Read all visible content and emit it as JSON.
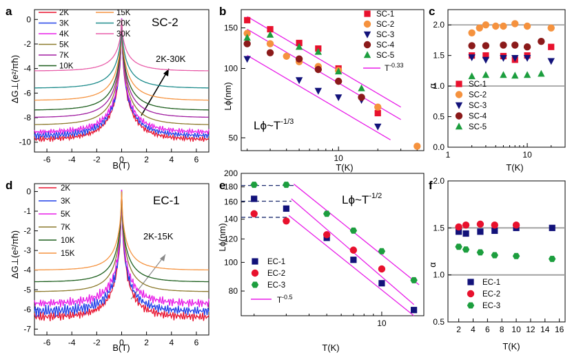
{
  "colors": {
    "red": "#e8112d",
    "orange": "#f5923e",
    "navy": "#12127a",
    "brown": "#8b1a1a",
    "green": "#1c9e3e",
    "magenta": "#e81ce8",
    "blue": "#1f3ee8",
    "olive": "#8c7a2c",
    "darkgreen": "#1c5e1c",
    "teal": "#1a8a8a",
    "black": "#000000",
    "pink": "#e85ca8",
    "purple": "#a01ca0",
    "gray": "#9a9a9a",
    "dash": "#1a2a6e"
  },
  "chart_data": [
    {
      "panel": "a",
      "type": "line",
      "label_text": "SC-2",
      "arrow_text": "2K-30K",
      "xlabel": "B(T)",
      "ylabel": "ΔG⊥(e²/πħ)",
      "xlim": [
        -7,
        7
      ],
      "ylim": [
        -10.8,
        0.8
      ],
      "xticks": [
        -6,
        -4,
        -2,
        0,
        2,
        4,
        6
      ],
      "yticks": [
        0,
        -2,
        -4,
        -6,
        -8,
        -10
      ],
      "series": [
        {
          "name": "2K",
          "color": "red",
          "edge": -9.8
        },
        {
          "name": "3K",
          "color": "blue",
          "edge": -9.5
        },
        {
          "name": "4K",
          "color": "magenta",
          "edge": -9.2
        },
        {
          "name": "5K",
          "color": "olive",
          "edge": -8.6
        },
        {
          "name": "7K",
          "color": "purple",
          "edge": -8.0
        },
        {
          "name": "10K",
          "color": "darkgreen",
          "edge": -7.4
        },
        {
          "name": "15K",
          "color": "orange",
          "edge": -6.6
        },
        {
          "name": "20K",
          "color": "teal",
          "edge": -5.6
        },
        {
          "name": "30K",
          "color": "pink",
          "edge": -4.2
        }
      ]
    },
    {
      "panel": "b",
      "type": "scatter",
      "scale": "log-log",
      "big_text": "Lϕ~T",
      "big_exp": "-1/3",
      "xlabel": "T(K)",
      "ylabel": "Lϕ(nm)",
      "xlim": [
        1.8,
        45
      ],
      "ylim": [
        44,
        180
      ],
      "xticks": [
        10
      ],
      "yticks": [
        50,
        100,
        150
      ],
      "series": [
        {
          "name": "SC-1",
          "marker": "square",
          "color": "red",
          "points": [
            [
              2,
              162
            ],
            [
              3,
              148
            ],
            [
              5,
              129
            ],
            [
              7,
              122
            ],
            [
              10,
              100
            ],
            [
              20,
              64
            ]
          ]
        },
        {
          "name": "SC-2",
          "marker": "circle",
          "color": "orange",
          "points": [
            [
              2,
              142
            ],
            [
              3,
              128
            ],
            [
              4,
              113
            ],
            [
              5,
              107
            ],
            [
              7,
              102
            ],
            [
              10,
              98
            ],
            [
              20,
              68
            ],
            [
              40,
              46
            ]
          ]
        },
        {
          "name": "SC-3",
          "marker": "triangle-down",
          "color": "navy",
          "points": [
            [
              2,
              110
            ],
            [
              5,
              89
            ],
            [
              7,
              80
            ],
            [
              10,
              75
            ],
            [
              15,
              73
            ],
            [
              20,
              56
            ]
          ]
        },
        {
          "name": "SC-4",
          "marker": "circle",
          "color": "brown",
          "points": [
            [
              2,
              128
            ],
            [
              3,
              117
            ],
            [
              5,
              110
            ],
            [
              7,
              99
            ],
            [
              10,
              88
            ],
            [
              15,
              75
            ]
          ]
        },
        {
          "name": "SC-5",
          "marker": "triangle-up",
          "color": "green",
          "points": [
            [
              2,
              136
            ],
            [
              3,
              140
            ],
            [
              5,
              124
            ],
            [
              7,
              118
            ],
            [
              10,
              97
            ],
            [
              15,
              82
            ]
          ]
        }
      ],
      "fit_lines": [
        {
          "name": "T-0.33",
          "exp": "-0.33",
          "color": "magenta",
          "lines": [
            [
              [
                2,
                168
              ],
              [
                30,
                68
              ]
            ],
            [
              [
                2,
                148
              ],
              [
                30,
                60
              ]
            ],
            [
              [
                2,
                114
              ],
              [
                25,
                49
              ]
            ]
          ]
        }
      ]
    },
    {
      "panel": "c",
      "type": "scatter",
      "scale": "log-x",
      "xlabel": "T(K)",
      "ylabel": "α",
      "xlim": [
        1,
        30
      ],
      "ylim": [
        0,
        2.25
      ],
      "xticks": [
        1,
        10
      ],
      "yticks": [
        0.0,
        0.5,
        1.0,
        1.5,
        2.0
      ],
      "hlines": [
        1.0,
        2.0
      ],
      "series": [
        {
          "name": "SC-1",
          "marker": "square",
          "color": "red",
          "points": [
            [
              2,
              1.5
            ],
            [
              3,
              1.5
            ],
            [
              5,
              1.49
            ],
            [
              7,
              1.43
            ],
            [
              10,
              1.5
            ],
            [
              20,
              1.64
            ]
          ]
        },
        {
          "name": "SC-2",
          "marker": "circle",
          "color": "orange",
          "points": [
            [
              2,
              1.87
            ],
            [
              2.5,
              1.95
            ],
            [
              3,
              2.0
            ],
            [
              4,
              1.98
            ],
            [
              5,
              1.98
            ],
            [
              7,
              2.02
            ],
            [
              10,
              1.98
            ],
            [
              20,
              1.95
            ]
          ]
        },
        {
          "name": "SC-3",
          "marker": "triangle-down",
          "color": "navy",
          "points": [
            [
              2,
              1.47
            ],
            [
              3,
              1.43
            ],
            [
              5,
              1.46
            ],
            [
              7,
              1.46
            ],
            [
              10,
              1.46
            ],
            [
              20,
              1.41
            ]
          ]
        },
        {
          "name": "SC-4",
          "marker": "circle",
          "color": "brown",
          "points": [
            [
              2,
              1.66
            ],
            [
              3,
              1.66
            ],
            [
              5,
              1.67
            ],
            [
              7,
              1.67
            ],
            [
              10,
              1.64
            ],
            [
              15,
              1.73
            ]
          ]
        },
        {
          "name": "SC-5",
          "marker": "triangle-up",
          "color": "green",
          "points": [
            [
              2,
              1.16
            ],
            [
              3,
              1.18
            ],
            [
              5,
              1.18
            ],
            [
              7,
              1.17
            ],
            [
              10,
              1.18
            ],
            [
              15,
              1.2
            ]
          ]
        }
      ]
    },
    {
      "panel": "d",
      "type": "line",
      "label_text": "EC-1",
      "arrow_text": "2K-15K",
      "xlabel": "B(T)",
      "ylabel": "ΔG⊥(e²/πħ)",
      "xlim": [
        -7,
        7
      ],
      "ylim": [
        -7.3,
        0.4
      ],
      "xticks": [
        -6,
        -4,
        -2,
        0,
        2,
        4,
        6
      ],
      "yticks": [
        0,
        -1,
        -2,
        -3,
        -4,
        -5,
        -6,
        -7
      ],
      "series": [
        {
          "name": "2K",
          "color": "red",
          "edge": -6.4
        },
        {
          "name": "3K",
          "color": "blue",
          "edge": -6.1
        },
        {
          "name": "5K",
          "color": "magenta",
          "edge": -5.7
        },
        {
          "name": "7K",
          "color": "olive",
          "edge": -5.1
        },
        {
          "name": "10K",
          "color": "darkgreen",
          "edge": -4.6
        },
        {
          "name": "15K",
          "color": "orange",
          "edge": -4.0
        }
      ]
    },
    {
      "panel": "e",
      "type": "scatter",
      "scale": "log-log",
      "big_text": "Lϕ~T",
      "big_exp": "-1/2",
      "xlabel": "T(K)",
      "ylabel": "Lϕ(nm)",
      "xlim": [
        1.7,
        17
      ],
      "ylim": [
        66,
        200
      ],
      "xticks": [
        10
      ],
      "yticks": [
        80,
        100,
        120,
        140,
        160,
        180,
        200
      ],
      "series": [
        {
          "name": "EC-1",
          "marker": "square",
          "color": "navy",
          "points": [
            [
              2,
              164
            ],
            [
              3,
              152
            ],
            [
              5,
              121
            ],
            [
              7,
              102
            ],
            [
              10,
              85
            ],
            [
              15,
              69
            ]
          ]
        },
        {
          "name": "EC-2",
          "marker": "circle",
          "color": "red",
          "points": [
            [
              2,
              146
            ],
            [
              3,
              138
            ],
            [
              5,
              124
            ],
            [
              7,
              110
            ],
            [
              10,
              95
            ]
          ]
        },
        {
          "name": "EC-3",
          "marker": "hexagon",
          "color": "green",
          "points": [
            [
              2,
              183
            ],
            [
              3,
              183
            ],
            [
              5,
              146
            ],
            [
              7,
              128
            ],
            [
              10,
              109
            ],
            [
              15,
              87
            ]
          ]
        }
      ],
      "fit_lines": [
        {
          "name": "T-0.5",
          "exp": "-0.5",
          "color": "magenta",
          "lines": [
            [
              [
                3.3,
                184
              ],
              [
                16,
                84
              ]
            ],
            [
              [
                3.2,
                164
              ],
              [
                15,
                72
              ]
            ],
            [
              [
                3.1,
                144
              ],
              [
                15,
                66
              ]
            ]
          ]
        }
      ],
      "dashed": [
        [
          [
            1.7,
            182
          ],
          [
            3.3,
            182
          ]
        ],
        [
          [
            1.7,
            161
          ],
          [
            3.2,
            161
          ]
        ],
        [
          [
            1.7,
            142
          ],
          [
            3.1,
            142
          ]
        ]
      ]
    },
    {
      "panel": "f",
      "type": "scatter",
      "scale": "linear",
      "xlabel": "T(K)",
      "ylabel": "α",
      "xlim": [
        0.5,
        16.8
      ],
      "ylim": [
        0.5,
        2.0
      ],
      "xticks": [
        2,
        4,
        6,
        8,
        10,
        12,
        14,
        16
      ],
      "yticks": [
        0.5,
        1.0,
        1.5,
        2.0
      ],
      "hlines": [
        1.0,
        1.5
      ],
      "series": [
        {
          "name": "EC-1",
          "marker": "square",
          "color": "navy",
          "points": [
            [
              2,
              1.46
            ],
            [
              3,
              1.44
            ],
            [
              5,
              1.46
            ],
            [
              7,
              1.47
            ],
            [
              10,
              1.5
            ],
            [
              15,
              1.5
            ]
          ]
        },
        {
          "name": "EC-2",
          "marker": "circle",
          "color": "red",
          "points": [
            [
              2,
              1.51
            ],
            [
              3,
              1.53
            ],
            [
              5,
              1.54
            ],
            [
              7,
              1.53
            ],
            [
              10,
              1.53
            ]
          ]
        },
        {
          "name": "EC-3",
          "marker": "hexagon",
          "color": "green",
          "points": [
            [
              2,
              1.3
            ],
            [
              3,
              1.27
            ],
            [
              5,
              1.24
            ],
            [
              7,
              1.21
            ],
            [
              10,
              1.2
            ],
            [
              15,
              1.17
            ]
          ]
        }
      ]
    }
  ]
}
